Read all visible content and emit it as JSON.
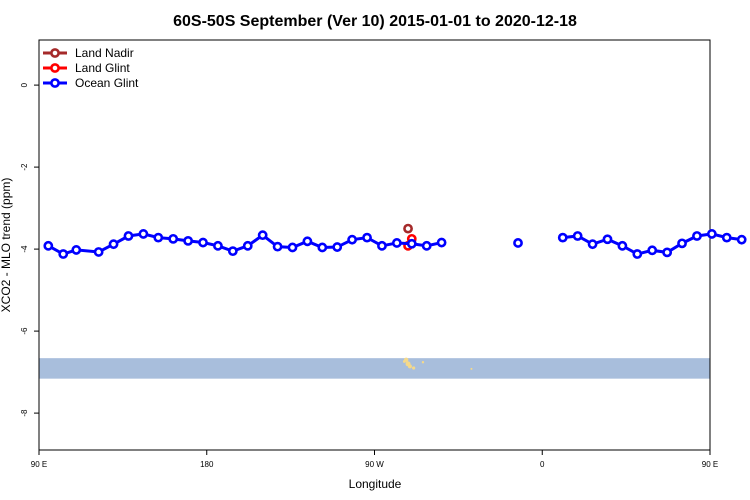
{
  "chart_data": {
    "type": "line",
    "title": "60S-50S September (Ver 10)   2015-01-01 to 2020-12-18",
    "xlabel": "Longitude",
    "ylabel": "XCO2 - MLO trend (ppm)",
    "xlim": [
      90,
      450
    ],
    "ylim": [
      -8.9,
      1.1
    ],
    "x_ticks": [
      {
        "value": 90,
        "label": "90 E"
      },
      {
        "value": 180,
        "label": "180"
      },
      {
        "value": 270,
        "label": "90 W"
      },
      {
        "value": 360,
        "label": "0"
      },
      {
        "value": 450,
        "label": "90 E"
      },
      {
        "value": 540,
        "label": "180"
      }
    ],
    "y_ticks": [
      {
        "value": 0,
        "label": "0"
      },
      {
        "value": -2,
        "label": "-2"
      },
      {
        "value": -4,
        "label": "-4"
      },
      {
        "value": -6,
        "label": "-6"
      },
      {
        "value": -8,
        "label": "-8"
      }
    ],
    "legend_position": "top-left",
    "series": [
      {
        "name": "Land Nadir",
        "color": "#a52a2a",
        "points": [
          [
            288,
            -3.5
          ]
        ]
      },
      {
        "name": "Land Glint",
        "color": "#ff0000",
        "points": [
          [
            288,
            -3.92
          ],
          [
            290,
            -3.75
          ]
        ]
      },
      {
        "name": "Ocean Glint",
        "color": "#0000ff",
        "segments": [
          [
            [
              95,
              -3.92
            ],
            [
              103,
              -4.12
            ],
            [
              110,
              -4.02
            ],
            [
              122,
              -4.07
            ],
            [
              130,
              -3.88
            ],
            [
              138,
              -3.68
            ],
            [
              146,
              -3.63
            ],
            [
              154,
              -3.72
            ],
            [
              162,
              -3.75
            ],
            [
              170,
              -3.8
            ],
            [
              178,
              -3.84
            ],
            [
              186,
              -3.92
            ],
            [
              194,
              -4.05
            ],
            [
              202,
              -3.92
            ],
            [
              210,
              -3.66
            ],
            [
              218,
              -3.94
            ],
            [
              226,
              -3.96
            ],
            [
              234,
              -3.81
            ],
            [
              242,
              -3.96
            ],
            [
              250,
              -3.95
            ],
            [
              258,
              -3.77
            ],
            [
              266,
              -3.72
            ],
            [
              274,
              -3.92
            ],
            [
              282,
              -3.85
            ],
            [
              290,
              -3.87
            ],
            [
              298,
              -3.92
            ],
            [
              306,
              -3.84
            ]
          ],
          [
            [
              347,
              -3.85
            ]
          ],
          [
            [
              371,
              -3.72
            ],
            [
              379,
              -3.68
            ],
            [
              387,
              -3.88
            ],
            [
              395,
              -3.76
            ],
            [
              403,
              -3.92
            ],
            [
              411,
              -4.12
            ],
            [
              419,
              -4.03
            ],
            [
              427,
              -4.08
            ],
            [
              435,
              -3.86
            ],
            [
              443,
              -3.68
            ],
            [
              451,
              -3.63
            ],
            [
              459,
              -3.72
            ],
            [
              467,
              -3.77
            ]
          ]
        ]
      }
    ],
    "colors": {
      "ocean_band": "#a8bedc",
      "land": "#f5d98a"
    }
  }
}
